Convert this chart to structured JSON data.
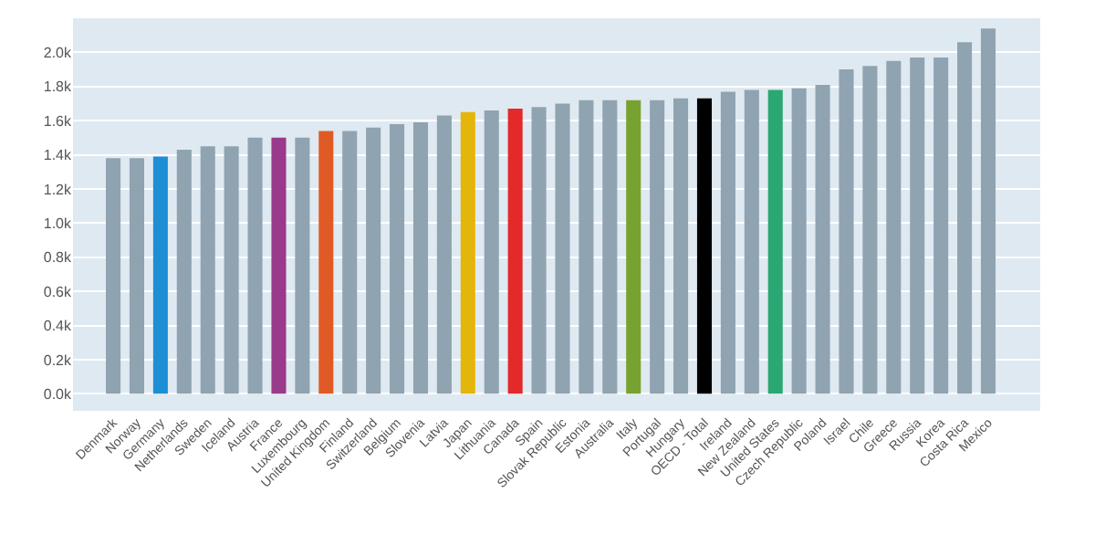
{
  "chart_data": {
    "type": "bar",
    "categories": [
      "Denmark",
      "Norway",
      "Germany",
      "Netherlands",
      "Sweden",
      "Iceland",
      "Austria",
      "France",
      "Luxembourg",
      "United Kingdom",
      "Finland",
      "Switzerland",
      "Belgium",
      "Slovenia",
      "Latvia",
      "Japan",
      "Lithuania",
      "Canada",
      "Spain",
      "Slovak Republic",
      "Estonia",
      "Australia",
      "Italy",
      "Portugal",
      "Hungary",
      "OECD - Total",
      "Ireland",
      "New Zealand",
      "United States",
      "Czech Republic",
      "Poland",
      "Israel",
      "Chile",
      "Greece",
      "Russia",
      "Korea",
      "Costa Rica",
      "Mexico"
    ],
    "values": [
      1380,
      1380,
      1390,
      1430,
      1450,
      1450,
      1500,
      1500,
      1500,
      1540,
      1540,
      1560,
      1580,
      1590,
      1630,
      1650,
      1660,
      1670,
      1680,
      1700,
      1720,
      1720,
      1720,
      1720,
      1730,
      1730,
      1770,
      1780,
      1780,
      1790,
      1810,
      1900,
      1920,
      1950,
      1970,
      1970,
      2060,
      2140
    ],
    "colors": [
      "#8fa3b1",
      "#8fa3b1",
      "#1e8fd5",
      "#8fa3b1",
      "#8fa3b1",
      "#8fa3b1",
      "#8fa3b1",
      "#993a8b",
      "#8fa3b1",
      "#e05a26",
      "#8fa3b1",
      "#8fa3b1",
      "#8fa3b1",
      "#8fa3b1",
      "#8fa3b1",
      "#e4b50b",
      "#8fa3b1",
      "#e3292a",
      "#8fa3b1",
      "#8fa3b1",
      "#8fa3b1",
      "#8fa3b1",
      "#78a22f",
      "#8fa3b1",
      "#8fa3b1",
      "#000000",
      "#8fa3b1",
      "#8fa3b1",
      "#2aa772",
      "#8fa3b1",
      "#8fa3b1",
      "#8fa3b1",
      "#8fa3b1",
      "#8fa3b1",
      "#8fa3b1",
      "#8fa3b1",
      "#8fa3b1",
      "#8fa3b1"
    ],
    "ylim": [
      -100,
      2200
    ],
    "yticks": [
      {
        "value": 0,
        "label": "0.0k"
      },
      {
        "value": 200,
        "label": "0.2k"
      },
      {
        "value": 400,
        "label": "0.4k"
      },
      {
        "value": 600,
        "label": "0.6k"
      },
      {
        "value": 800,
        "label": "0.8k"
      },
      {
        "value": 1000,
        "label": "1.0k"
      },
      {
        "value": 1200,
        "label": "1.2k"
      },
      {
        "value": 1400,
        "label": "1.4k"
      },
      {
        "value": 1600,
        "label": "1.6k"
      },
      {
        "value": 1800,
        "label": "1.8k"
      },
      {
        "value": 2000,
        "label": "2.0k"
      }
    ],
    "grid": "y"
  }
}
